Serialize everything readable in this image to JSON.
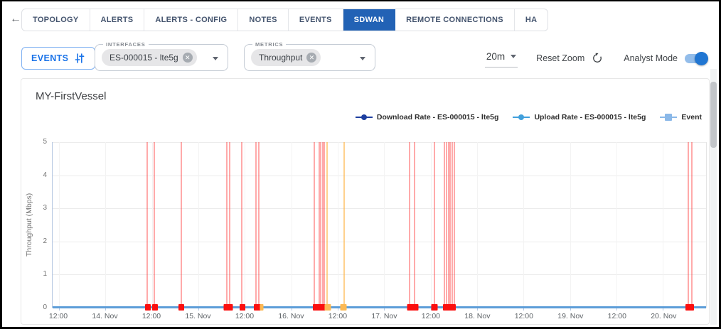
{
  "nav": {
    "back_icon": "arrow-left",
    "tabs": [
      {
        "label": "TOPOLOGY",
        "active": false
      },
      {
        "label": "ALERTS",
        "active": false
      },
      {
        "label": "ALERTS - CONFIG",
        "active": false
      },
      {
        "label": "NOTES",
        "active": false
      },
      {
        "label": "EVENTS",
        "active": false
      },
      {
        "label": "SDWAN",
        "active": true
      },
      {
        "label": "REMOTE CONNECTIONS",
        "active": false
      },
      {
        "label": "HA",
        "active": false
      }
    ]
  },
  "toolbar": {
    "events_button": {
      "label": "EVENTS",
      "icon": "tune-sliders-icon"
    },
    "interfaces_select": {
      "label": "INTERFACES",
      "chip": "ES-000015 - lte5g",
      "chip_remove_icon": "circle-x",
      "dropdown_icon": "caret-down"
    },
    "metrics_select": {
      "label": "METRICS",
      "chip": "Throughput",
      "chip_remove_icon": "circle-x",
      "dropdown_icon": "caret-down"
    },
    "interval": {
      "value": "20m",
      "dropdown_icon": "caret-down"
    },
    "reset_zoom_label": "Reset Zoom",
    "reset_icon": "rotate-arrow",
    "analyst_mode_label": "Analyst Mode",
    "analyst_mode_on": true,
    "accent_color": "#1a73e8"
  },
  "chart_data": {
    "type": "line",
    "title": "MY-FirstVessel",
    "ylabel": "Throughput (Mbps)",
    "xlabel": "",
    "ylim": [
      0,
      5
    ],
    "y_ticks": [
      5,
      4,
      3,
      2,
      1,
      0
    ],
    "grid": true,
    "legend_position": "top-right",
    "x_ticks": [
      {
        "label": "12:00",
        "pct": 0.98
      },
      {
        "label": "14. Nov",
        "pct": 8.09
      },
      {
        "label": "12:00",
        "pct": 15.2
      },
      {
        "label": "15. Nov",
        "pct": 22.31
      },
      {
        "label": "12:00",
        "pct": 29.42
      },
      {
        "label": "16. Nov",
        "pct": 36.53
      },
      {
        "label": "12:00",
        "pct": 43.64
      },
      {
        "label": "17. Nov",
        "pct": 50.75
      },
      {
        "label": "12:00",
        "pct": 57.86
      },
      {
        "label": "18. Nov",
        "pct": 64.97
      },
      {
        "label": "12:00",
        "pct": 72.08
      },
      {
        "label": "19. Nov",
        "pct": 79.19
      },
      {
        "label": "12:00",
        "pct": 86.3
      },
      {
        "label": "20. Nov",
        "pct": 93.41
      }
    ],
    "legend": [
      {
        "label": "Download Rate - ES-000015 - lte5g",
        "color": "#1e3fa0",
        "marker": "line-dot"
      },
      {
        "label": "Upload Rate - ES-000015 - lte5g",
        "color": "#41a0dc",
        "marker": "line-dot"
      },
      {
        "label": "Event",
        "color": "#8ab8e8",
        "marker": "line-square"
      }
    ],
    "series": [
      {
        "name": "Download Rate - ES-000015 - lte5g",
        "color": "#1e3fa0",
        "constant_value_mbps": 0
      },
      {
        "name": "Upload Rate - ES-000015 - lte5g",
        "color": "#41a0dc",
        "constant_value_mbps": 0
      }
    ],
    "rendered_line_color": "#5d9dd8",
    "colors": {
      "red": "rgba(255,66,66,0.45)",
      "red_solid": "#fb0f0f",
      "orange": "rgba(255,184,80,0.65)",
      "orange_solid": "#fcb954"
    },
    "event_lines": [
      {
        "x_pct": 14.44,
        "color": "red"
      },
      {
        "x_pct": 15.58,
        "color": "red"
      },
      {
        "x_pct": 19.65,
        "color": "red"
      },
      {
        "x_pct": 26.66,
        "color": "red"
      },
      {
        "x_pct": 27.09,
        "color": "red"
      },
      {
        "x_pct": 28.99,
        "color": "red"
      },
      {
        "x_pct": 31.11,
        "color": "red"
      },
      {
        "x_pct": 31.6,
        "color": "red"
      },
      {
        "x_pct": 40.01,
        "color": "red"
      },
      {
        "x_pct": 40.77,
        "color": "red"
      },
      {
        "x_pct": 41.04,
        "color": "red"
      },
      {
        "x_pct": 41.31,
        "color": "red"
      },
      {
        "x_pct": 41.59,
        "color": "red"
      },
      {
        "x_pct": 42.02,
        "color": "orange"
      },
      {
        "x_pct": 44.57,
        "color": "orange"
      },
      {
        "x_pct": 54.61,
        "color": "red"
      },
      {
        "x_pct": 55.37,
        "color": "red"
      },
      {
        "x_pct": 58.41,
        "color": "red"
      },
      {
        "x_pct": 59.93,
        "color": "red"
      },
      {
        "x_pct": 60.26,
        "color": "red"
      },
      {
        "x_pct": 60.59,
        "color": "red"
      },
      {
        "x_pct": 60.86,
        "color": "red"
      },
      {
        "x_pct": 61.18,
        "color": "red"
      },
      {
        "x_pct": 61.45,
        "color": "red"
      },
      {
        "x_pct": 97.23,
        "color": "red"
      },
      {
        "x_pct": 97.77,
        "color": "red"
      }
    ],
    "event_markers": [
      {
        "x_pct": 14.6,
        "w": 8,
        "color": "red"
      },
      {
        "x_pct": 15.7,
        "w": 8,
        "color": "red"
      },
      {
        "x_pct": 19.7,
        "w": 8,
        "color": "red"
      },
      {
        "x_pct": 26.9,
        "w": 13,
        "color": "red"
      },
      {
        "x_pct": 29.0,
        "w": 8,
        "color": "red"
      },
      {
        "x_pct": 31.3,
        "w": 10,
        "color": "red"
      },
      {
        "x_pct": 31.95,
        "w": 5,
        "color": "orange"
      },
      {
        "x_pct": 40.8,
        "w": 18,
        "color": "red"
      },
      {
        "x_pct": 42.1,
        "w": 9,
        "color": "orange"
      },
      {
        "x_pct": 44.5,
        "w": 9,
        "color": "orange"
      },
      {
        "x_pct": 54.7,
        "w": 9,
        "color": "red"
      },
      {
        "x_pct": 55.5,
        "w": 9,
        "color": "red"
      },
      {
        "x_pct": 58.4,
        "w": 9,
        "color": "red"
      },
      {
        "x_pct": 60.7,
        "w": 18,
        "color": "red"
      },
      {
        "x_pct": 97.5,
        "w": 12,
        "color": "red"
      }
    ]
  }
}
